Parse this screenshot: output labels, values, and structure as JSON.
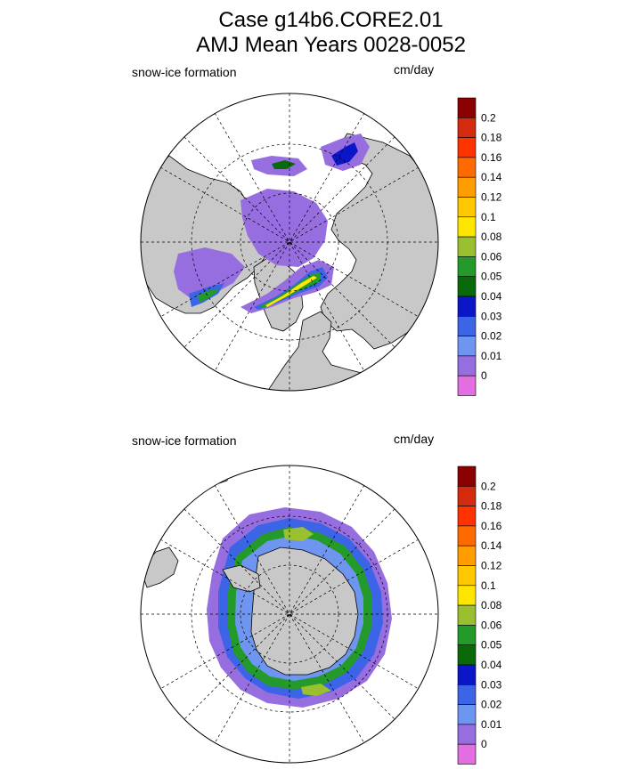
{
  "title_line1": "Case g14b6.CORE2.01",
  "title_line2": "AMJ Mean   Years 0028-0052",
  "chart_data": [
    {
      "type": "heatmap",
      "projection": "north polar stereographic",
      "title": "snow-ice formation",
      "units": "cm/day",
      "colorbar": {
        "levels": [
          "0.2",
          "0.18",
          "0.16",
          "0.14",
          "0.12",
          "0.1",
          "0.08",
          "0.06",
          "0.05",
          "0.04",
          "0.03",
          "0.02",
          "0.01",
          "0"
        ],
        "colors": [
          "#8b0000",
          "#d42a0e",
          "#ff3300",
          "#ff6a00",
          "#ff9c00",
          "#ffc800",
          "#ffe600",
          "#9ac030",
          "#239a2a",
          "#0a6a0a",
          "#0a16c8",
          "#3c64e6",
          "#6e96f0",
          "#966ee0",
          "#e26ee2"
        ]
      }
    },
    {
      "type": "heatmap",
      "projection": "south polar stereographic",
      "title": "snow-ice formation",
      "units": "cm/day",
      "colorbar": {
        "levels": [
          "0.2",
          "0.18",
          "0.16",
          "0.14",
          "0.12",
          "0.1",
          "0.08",
          "0.06",
          "0.05",
          "0.04",
          "0.03",
          "0.02",
          "0.01",
          "0"
        ],
        "colors": [
          "#8b0000",
          "#d42a0e",
          "#ff3300",
          "#ff6a00",
          "#ff9c00",
          "#ffc800",
          "#ffe600",
          "#9ac030",
          "#239a2a",
          "#0a6a0a",
          "#0a16c8",
          "#3c64e6",
          "#6e96f0",
          "#966ee0",
          "#e26ee2"
        ]
      }
    }
  ]
}
